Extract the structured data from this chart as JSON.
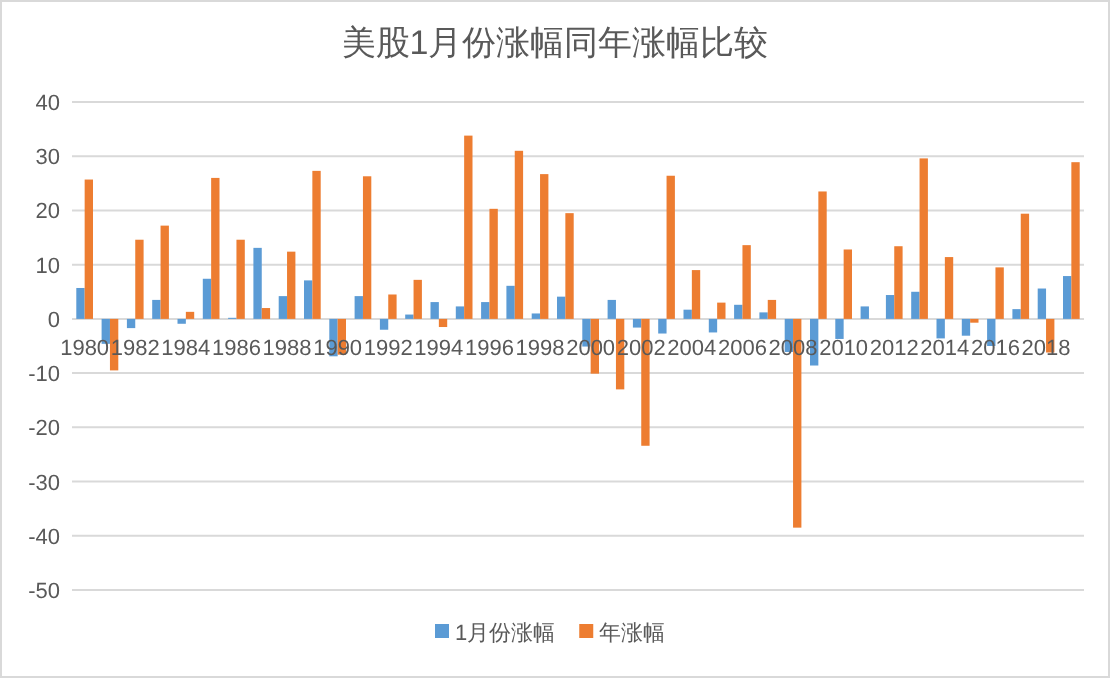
{
  "chart_data": {
    "type": "bar",
    "title": "美股1月份涨幅同年涨幅比较",
    "categories": [
      "1980",
      null,
      "1982",
      null,
      "1984",
      null,
      "1986",
      null,
      "1988",
      null,
      "1990",
      null,
      "1992",
      null,
      "1994",
      null,
      "1996",
      null,
      "1998",
      null,
      "2000",
      null,
      "2002",
      null,
      "2004",
      null,
      "2006",
      null,
      "2008",
      null,
      "2010",
      null,
      "2012",
      null,
      "2014",
      null,
      "2016",
      null,
      "2018",
      null
    ],
    "series": [
      {
        "name": "1月份涨幅",
        "color": "#5b9bd5",
        "values": [
          5.7,
          -4.6,
          -1.7,
          3.5,
          -0.9,
          7.4,
          0.2,
          13.1,
          4.2,
          7.1,
          -6.9,
          4.2,
          -2.0,
          0.8,
          3.1,
          2.3,
          3.1,
          6.1,
          1.0,
          4.1,
          -5.1,
          3.5,
          -1.6,
          -2.7,
          1.7,
          -2.5,
          2.6,
          1.2,
          -6.1,
          -8.6,
          -3.7,
          2.3,
          4.4,
          5.0,
          -3.6,
          -3.1,
          -5.0,
          1.8,
          5.6,
          7.9
        ]
      },
      {
        "name": "年涨幅",
        "color": "#ed7d31",
        "values": [
          25.7,
          -9.5,
          14.6,
          17.2,
          1.3,
          26.0,
          14.6,
          2.0,
          12.4,
          27.3,
          -6.6,
          26.3,
          4.5,
          7.2,
          -1.5,
          33.8,
          20.3,
          31.0,
          26.7,
          19.5,
          -10.1,
          -13.0,
          -23.4,
          26.4,
          9.0,
          3.0,
          13.6,
          3.5,
          -38.5,
          23.5,
          12.8,
          0.0,
          13.4,
          29.6,
          11.4,
          -0.7,
          9.5,
          19.4,
          -6.2,
          28.9
        ]
      }
    ],
    "ylim": [
      -50,
      40
    ],
    "yticks": [
      -50,
      -40,
      -30,
      -20,
      -10,
      0,
      10,
      20,
      30,
      40
    ],
    "grid": "y",
    "legend": "bottom"
  }
}
